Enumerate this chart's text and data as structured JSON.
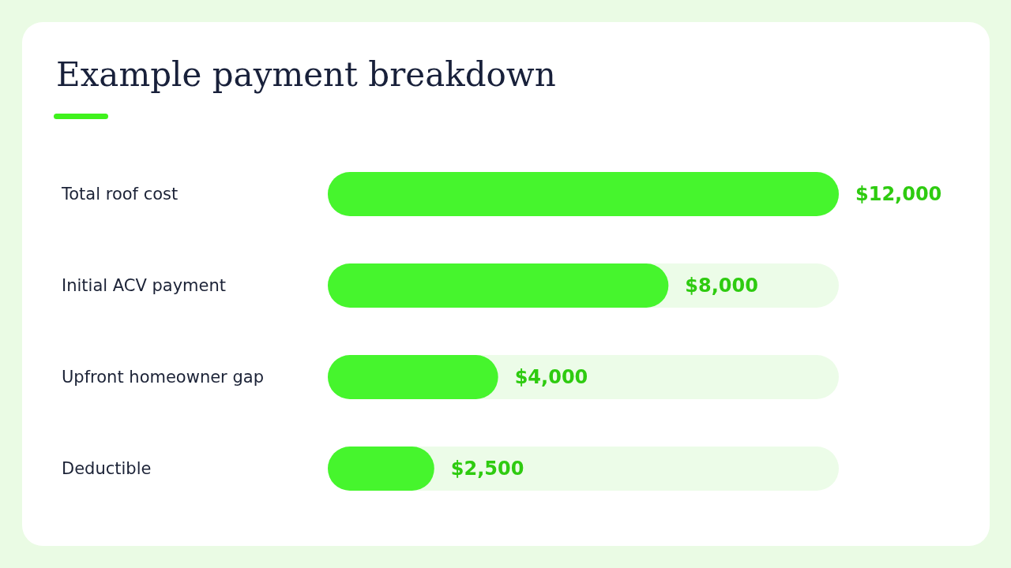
{
  "chart_data": {
    "type": "bar",
    "orientation": "horizontal",
    "title": "Example payment breakdown",
    "categories": [
      "Total roof cost",
      "Initial ACV payment",
      "Upfront homeowner gap",
      "Deductible"
    ],
    "values": [
      12000,
      8000,
      4000,
      2500
    ],
    "value_labels": [
      "$12,000",
      "$8,000",
      "$4,000",
      "$2,500"
    ],
    "color": "#46f52d",
    "tick_labels": "y"
  }
}
